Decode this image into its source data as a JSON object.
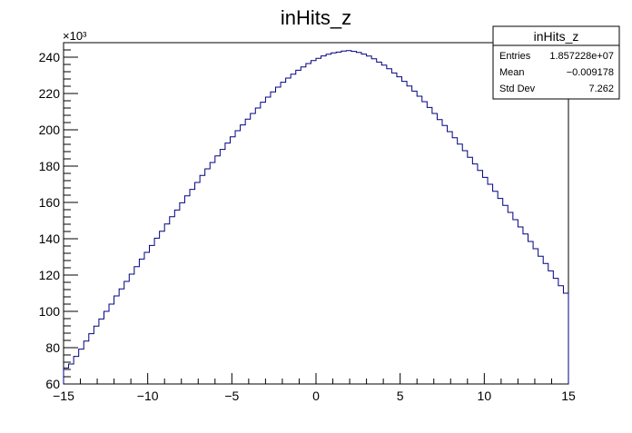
{
  "chart_data": {
    "type": "histogram",
    "title": "inHits_z",
    "xlabel": "",
    "ylabel": "",
    "xlim": [
      -15,
      15
    ],
    "ylim": [
      60,
      248
    ],
    "y_multiplier_label": "×10³",
    "x_ticks": [
      -15,
      -10,
      -5,
      0,
      5,
      10,
      15
    ],
    "x_tick_labels": [
      "−15",
      "−10",
      "−5",
      "0",
      "5",
      "10",
      "15"
    ],
    "y_ticks": [
      60,
      80,
      100,
      120,
      140,
      160,
      180,
      200,
      220,
      240
    ],
    "y_tick_labels": [
      "60",
      "80",
      "100",
      "120",
      "140",
      "160",
      "180",
      "200",
      "220",
      "240"
    ],
    "bin_edges_range": [
      -15,
      15
    ],
    "n_bins": 100,
    "values": [
      68.8,
      71.0,
      75.2,
      79.2,
      83.6,
      87.7,
      91.9,
      95.8,
      100.0,
      104.0,
      108.5,
      112.4,
      116.5,
      120.5,
      124.6,
      128.8,
      132.5,
      136.3,
      140.3,
      144.1,
      148.1,
      152.1,
      155.8,
      159.8,
      163.6,
      167.2,
      171.0,
      174.9,
      178.5,
      182.0,
      185.6,
      189.2,
      192.7,
      196.1,
      199.5,
      202.7,
      205.9,
      209.0,
      212.0,
      215.2,
      218.0,
      220.9,
      223.5,
      226.2,
      228.5,
      230.6,
      232.8,
      234.6,
      236.5,
      238.1,
      239.4,
      240.7,
      241.6,
      242.4,
      242.8,
      243.4,
      243.6,
      243.2,
      242.6,
      241.7,
      240.6,
      239.1,
      237.3,
      235.6,
      233.6,
      231.3,
      229.2,
      226.7,
      224.1,
      221.3,
      218.5,
      215.5,
      212.3,
      209.0,
      205.6,
      202.4,
      199.0,
      195.6,
      192.1,
      188.5,
      184.9,
      181.2,
      177.6,
      173.8,
      170.0,
      166.1,
      162.2,
      158.4,
      154.5,
      150.5,
      146.5,
      142.6,
      138.5,
      134.5,
      130.4,
      126.4,
      122.3,
      118.2,
      114.1,
      110.0
    ],
    "line_color": "#000080",
    "grid": false,
    "stats_box": {
      "title": "inHits_z",
      "placement": "top-right",
      "rows": [
        {
          "label": "Entries",
          "value": "1.857228e+07"
        },
        {
          "label": "Mean",
          "value": "−0.009178"
        },
        {
          "label": "Std Dev",
          "value": "7.262"
        }
      ]
    }
  }
}
